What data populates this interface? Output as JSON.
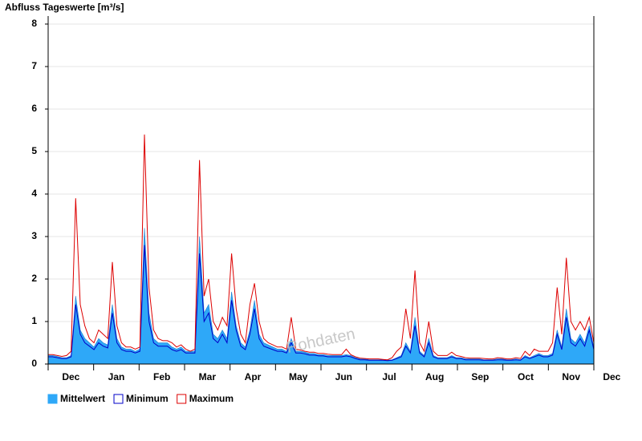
{
  "chart_data": {
    "type": "area-band",
    "title": "Abfluss Tageswerte [m³/s]",
    "watermark": "Rohdaten",
    "months": [
      "Dec",
      "Jan",
      "Feb",
      "Mar",
      "Apr",
      "May",
      "Jun",
      "Jul",
      "Aug",
      "Sep",
      "Oct",
      "Nov",
      "Dec"
    ],
    "ylim": [
      0,
      8
    ],
    "yticks": [
      0,
      1,
      2,
      3,
      4,
      5,
      6,
      7,
      8
    ],
    "grid": true,
    "series": [
      {
        "name": "Mittelwert",
        "color": "#2ea8f8",
        "values": [
          0.2,
          0.2,
          0.18,
          0.15,
          0.15,
          0.2,
          1.6,
          0.8,
          0.6,
          0.5,
          0.4,
          0.6,
          0.5,
          0.45,
          1.4,
          0.6,
          0.4,
          0.35,
          0.35,
          0.3,
          0.35,
          3.2,
          1.2,
          0.6,
          0.5,
          0.5,
          0.5,
          0.4,
          0.35,
          0.4,
          0.3,
          0.3,
          0.3,
          3.0,
          1.2,
          1.4,
          0.7,
          0.6,
          0.8,
          0.6,
          1.7,
          0.9,
          0.5,
          0.4,
          0.8,
          1.5,
          0.7,
          0.5,
          0.45,
          0.4,
          0.35,
          0.35,
          0.3,
          0.6,
          0.3,
          0.3,
          0.28,
          0.25,
          0.25,
          0.22,
          0.22,
          0.2,
          0.2,
          0.2,
          0.2,
          0.22,
          0.2,
          0.15,
          0.12,
          0.12,
          0.1,
          0.1,
          0.1,
          0.1,
          0.09,
          0.1,
          0.15,
          0.2,
          0.5,
          0.3,
          1.1,
          0.3,
          0.2,
          0.6,
          0.2,
          0.15,
          0.15,
          0.15,
          0.2,
          0.15,
          0.15,
          0.12,
          0.12,
          0.12,
          0.12,
          0.1,
          0.1,
          0.1,
          0.12,
          0.12,
          0.1,
          0.1,
          0.12,
          0.1,
          0.2,
          0.15,
          0.2,
          0.25,
          0.2,
          0.2,
          0.25,
          0.8,
          0.4,
          1.3,
          0.6,
          0.5,
          0.7,
          0.5,
          0.9,
          0.4
        ]
      },
      {
        "name": "Minimum",
        "color": "#0000c8",
        "values": [
          0.17,
          0.17,
          0.15,
          0.13,
          0.13,
          0.17,
          1.4,
          0.7,
          0.5,
          0.42,
          0.34,
          0.5,
          0.42,
          0.38,
          1.2,
          0.5,
          0.34,
          0.3,
          0.3,
          0.26,
          0.3,
          2.8,
          1.0,
          0.5,
          0.42,
          0.42,
          0.42,
          0.34,
          0.3,
          0.34,
          0.26,
          0.26,
          0.26,
          2.6,
          1.0,
          1.2,
          0.6,
          0.5,
          0.7,
          0.5,
          1.5,
          0.8,
          0.42,
          0.34,
          0.7,
          1.3,
          0.6,
          0.42,
          0.38,
          0.34,
          0.3,
          0.3,
          0.26,
          0.5,
          0.26,
          0.26,
          0.24,
          0.21,
          0.21,
          0.19,
          0.19,
          0.17,
          0.17,
          0.17,
          0.17,
          0.19,
          0.17,
          0.13,
          0.1,
          0.1,
          0.09,
          0.09,
          0.09,
          0.09,
          0.08,
          0.09,
          0.13,
          0.17,
          0.42,
          0.26,
          0.9,
          0.26,
          0.17,
          0.5,
          0.17,
          0.13,
          0.13,
          0.13,
          0.17,
          0.13,
          0.13,
          0.1,
          0.1,
          0.1,
          0.1,
          0.09,
          0.09,
          0.09,
          0.1,
          0.1,
          0.09,
          0.09,
          0.1,
          0.09,
          0.17,
          0.13,
          0.17,
          0.21,
          0.17,
          0.17,
          0.21,
          0.7,
          0.34,
          1.1,
          0.5,
          0.42,
          0.6,
          0.42,
          0.8,
          0.34
        ]
      },
      {
        "name": "Maximum",
        "color": "#dd0000",
        "values": [
          0.22,
          0.22,
          0.2,
          0.18,
          0.2,
          0.3,
          3.9,
          1.4,
          0.9,
          0.6,
          0.5,
          0.8,
          0.7,
          0.6,
          2.4,
          0.9,
          0.5,
          0.4,
          0.4,
          0.35,
          0.4,
          5.4,
          1.8,
          0.8,
          0.6,
          0.55,
          0.55,
          0.5,
          0.4,
          0.45,
          0.35,
          0.3,
          0.35,
          4.8,
          1.6,
          2.0,
          1.0,
          0.8,
          1.1,
          0.9,
          2.6,
          1.3,
          0.7,
          0.5,
          1.4,
          1.9,
          1.0,
          0.6,
          0.5,
          0.45,
          0.4,
          0.4,
          0.35,
          1.1,
          0.35,
          0.33,
          0.3,
          0.28,
          0.28,
          0.25,
          0.25,
          0.23,
          0.22,
          0.22,
          0.22,
          0.35,
          0.22,
          0.17,
          0.14,
          0.13,
          0.12,
          0.12,
          0.12,
          0.11,
          0.1,
          0.15,
          0.3,
          0.4,
          1.3,
          0.6,
          2.2,
          0.5,
          0.3,
          1.0,
          0.3,
          0.2,
          0.2,
          0.2,
          0.28,
          0.2,
          0.18,
          0.15,
          0.14,
          0.14,
          0.14,
          0.13,
          0.12,
          0.12,
          0.15,
          0.14,
          0.12,
          0.12,
          0.15,
          0.13,
          0.3,
          0.2,
          0.35,
          0.3,
          0.3,
          0.3,
          0.5,
          1.8,
          0.7,
          2.5,
          1.0,
          0.8,
          1.0,
          0.8,
          1.1,
          0.5
        ]
      }
    ]
  }
}
